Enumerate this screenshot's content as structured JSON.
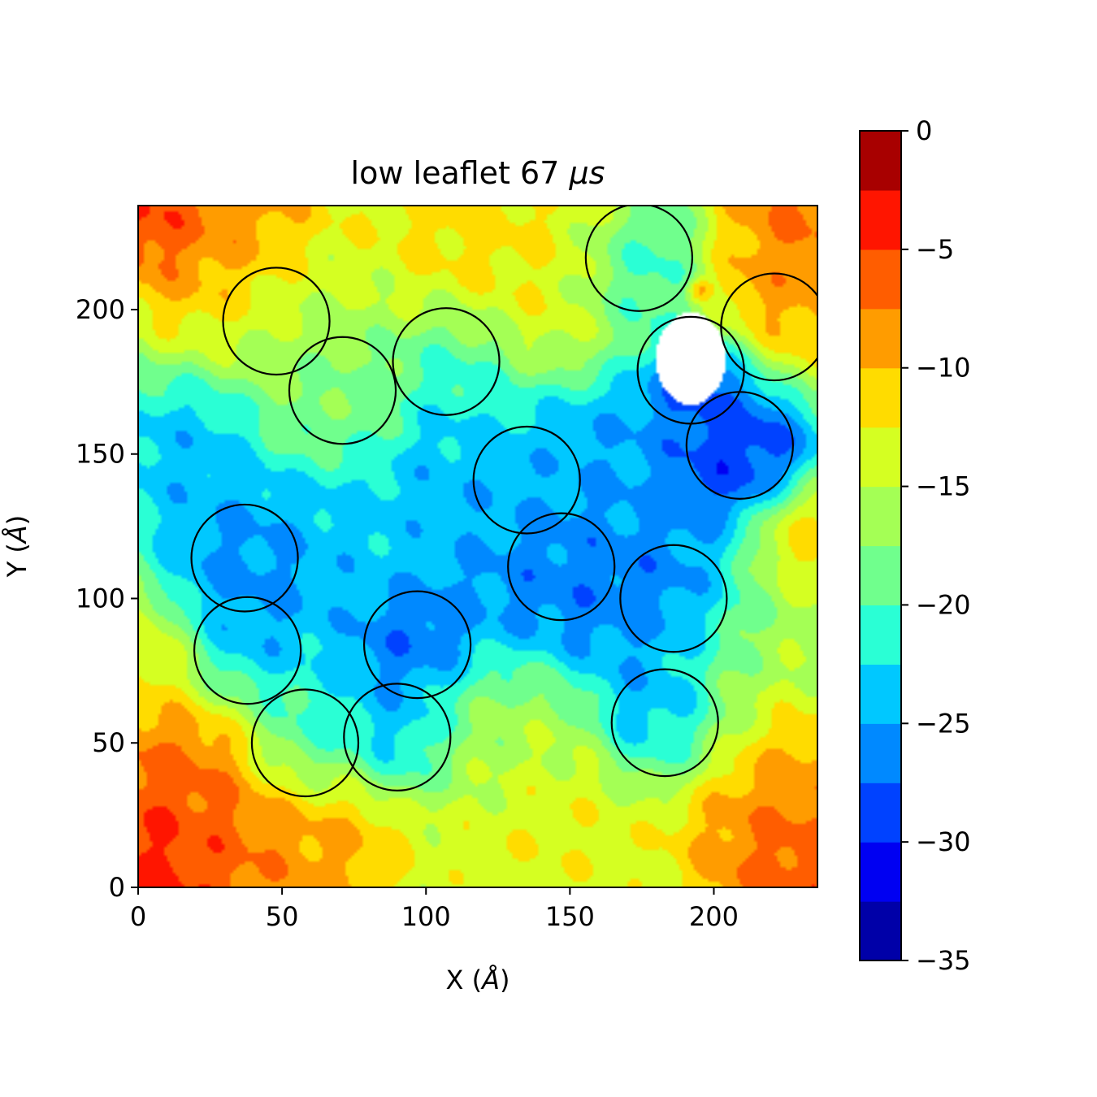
{
  "chart_data": {
    "type": "heatmap",
    "title": "low leaflet 67 μs",
    "title_prefix": "low leaflet 67 ",
    "title_unit": "μs",
    "xlabel": "X (Å)",
    "ylabel": "Y (Å)",
    "xlabel_prefix": "X (",
    "ylabel_prefix": "Y (",
    "angstrom": "Å",
    "label_suffix": ")",
    "xlim": [
      0,
      236
    ],
    "ylim": [
      0,
      236
    ],
    "xticks": [
      0,
      50,
      100,
      150,
      200
    ],
    "yticks": [
      0,
      50,
      100,
      150,
      200
    ],
    "colorbar": {
      "vmin": -35,
      "vmax": 0,
      "level_step": 2.5,
      "ticks": [
        0,
        -5,
        -10,
        -15,
        -20,
        -25,
        -30,
        -35
      ],
      "tick_labels": [
        "0",
        "−5",
        "−10",
        "−15",
        "−20",
        "−25",
        "−30",
        "−35"
      ],
      "bands": [
        {
          "from": -35,
          "to": -32.5,
          "color": "#0000a8"
        },
        {
          "from": -32.5,
          "to": -30,
          "color": "#0000f2"
        },
        {
          "from": -30,
          "to": -27.5,
          "color": "#0042ff"
        },
        {
          "from": -27.5,
          "to": -25,
          "color": "#0089ff"
        },
        {
          "from": -25,
          "to": -22.5,
          "color": "#00c8ff"
        },
        {
          "from": -22.5,
          "to": -20,
          "color": "#2affd5"
        },
        {
          "from": -20,
          "to": -17.5,
          "color": "#70ff8d"
        },
        {
          "from": -17.5,
          "to": -15,
          "color": "#a4ff55"
        },
        {
          "from": -15,
          "to": -12.5,
          "color": "#d5ff22"
        },
        {
          "from": -12.5,
          "to": -10,
          "color": "#ffdc00"
        },
        {
          "from": -10,
          "to": -7.5,
          "color": "#ff9c00"
        },
        {
          "from": -7.5,
          "to": -5,
          "color": "#ff5d00"
        },
        {
          "from": -5,
          "to": -2.5,
          "color": "#ff1500"
        },
        {
          "from": -2.5,
          "to": 0,
          "color": "#a80000"
        }
      ]
    },
    "field_base_value": -18.5,
    "field_blobs": [
      {
        "x": 0,
        "y": 0,
        "r": 42,
        "v": -1.5
      },
      {
        "x": 236,
        "y": 0,
        "r": 38,
        "v": -3
      },
      {
        "x": 0,
        "y": 236,
        "r": 26,
        "v": -2
      },
      {
        "x": 236,
        "y": 236,
        "r": 36,
        "v": -5
      },
      {
        "x": 20,
        "y": 30,
        "r": 55,
        "v": -5
      },
      {
        "x": 225,
        "y": 30,
        "r": 50,
        "v": -7
      },
      {
        "x": 60,
        "y": 20,
        "r": 40,
        "v": -8
      },
      {
        "x": 140,
        "y": 20,
        "r": 50,
        "v": -12
      },
      {
        "x": 120,
        "y": 230,
        "r": 60,
        "v": -10
      },
      {
        "x": 220,
        "y": 210,
        "r": 40,
        "v": -8
      },
      {
        "x": 30,
        "y": 228,
        "r": 45,
        "v": -6
      },
      {
        "x": 150,
        "y": 220,
        "r": 45,
        "v": -13
      },
      {
        "x": 60,
        "y": 195,
        "r": 45,
        "v": -16
      },
      {
        "x": 232,
        "y": 120,
        "r": 25,
        "v": -10
      },
      {
        "x": 5,
        "y": 80,
        "r": 25,
        "v": -12
      },
      {
        "x": 215,
        "y": 80,
        "r": 40,
        "v": -16
      },
      {
        "x": 120,
        "y": 55,
        "r": 35,
        "v": -17
      },
      {
        "x": 40,
        "y": 110,
        "r": 35,
        "v": -27
      },
      {
        "x": 37,
        "y": 85,
        "r": 30,
        "v": -26
      },
      {
        "x": 58,
        "y": 50,
        "r": 28,
        "v": -26
      },
      {
        "x": 97,
        "y": 83,
        "r": 30,
        "v": -29
      },
      {
        "x": 90,
        "y": 52,
        "r": 25,
        "v": -26
      },
      {
        "x": 145,
        "y": 110,
        "r": 40,
        "v": -28
      },
      {
        "x": 135,
        "y": 140,
        "r": 35,
        "v": -24
      },
      {
        "x": 185,
        "y": 100,
        "r": 35,
        "v": -28
      },
      {
        "x": 183,
        "y": 60,
        "r": 30,
        "v": -27
      },
      {
        "x": 208,
        "y": 150,
        "r": 30,
        "v": -31
      },
      {
        "x": 195,
        "y": 175,
        "r": 25,
        "v": -30
      },
      {
        "x": 175,
        "y": 215,
        "r": 30,
        "v": -26
      },
      {
        "x": 110,
        "y": 180,
        "r": 30,
        "v": -23
      },
      {
        "x": 70,
        "y": 172,
        "r": 28,
        "v": -19
      },
      {
        "x": 20,
        "y": 150,
        "r": 30,
        "v": -25
      },
      {
        "x": 110,
        "y": 140,
        "r": 35,
        "v": -25
      },
      {
        "x": 165,
        "y": 150,
        "r": 35,
        "v": -26
      },
      {
        "x": 75,
        "y": 120,
        "r": 35,
        "v": -24
      },
      {
        "x": 195,
        "y": 207,
        "r": 5,
        "v": -2
      }
    ],
    "blank_region": {
      "x": 192,
      "y": 183,
      "rx": 12,
      "ry": 16
    },
    "circles": [
      {
        "x": 48,
        "y": 196,
        "r": 18.5
      },
      {
        "x": 71,
        "y": 172,
        "r": 18.5
      },
      {
        "x": 107,
        "y": 182,
        "r": 18.5
      },
      {
        "x": 174,
        "y": 218,
        "r": 18.5
      },
      {
        "x": 221,
        "y": 194,
        "r": 18.5
      },
      {
        "x": 192,
        "y": 179,
        "r": 18.5
      },
      {
        "x": 209,
        "y": 153,
        "r": 18.5
      },
      {
        "x": 135,
        "y": 141,
        "r": 18.5
      },
      {
        "x": 147,
        "y": 111,
        "r": 18.5
      },
      {
        "x": 186,
        "y": 100,
        "r": 18.5
      },
      {
        "x": 37,
        "y": 114,
        "r": 18.5
      },
      {
        "x": 38,
        "y": 82,
        "r": 18.5
      },
      {
        "x": 97,
        "y": 84,
        "r": 18.5
      },
      {
        "x": 183,
        "y": 57,
        "r": 18.5
      },
      {
        "x": 58,
        "y": 50,
        "r": 18.5
      },
      {
        "x": 90,
        "y": 52,
        "r": 18.5
      }
    ]
  }
}
